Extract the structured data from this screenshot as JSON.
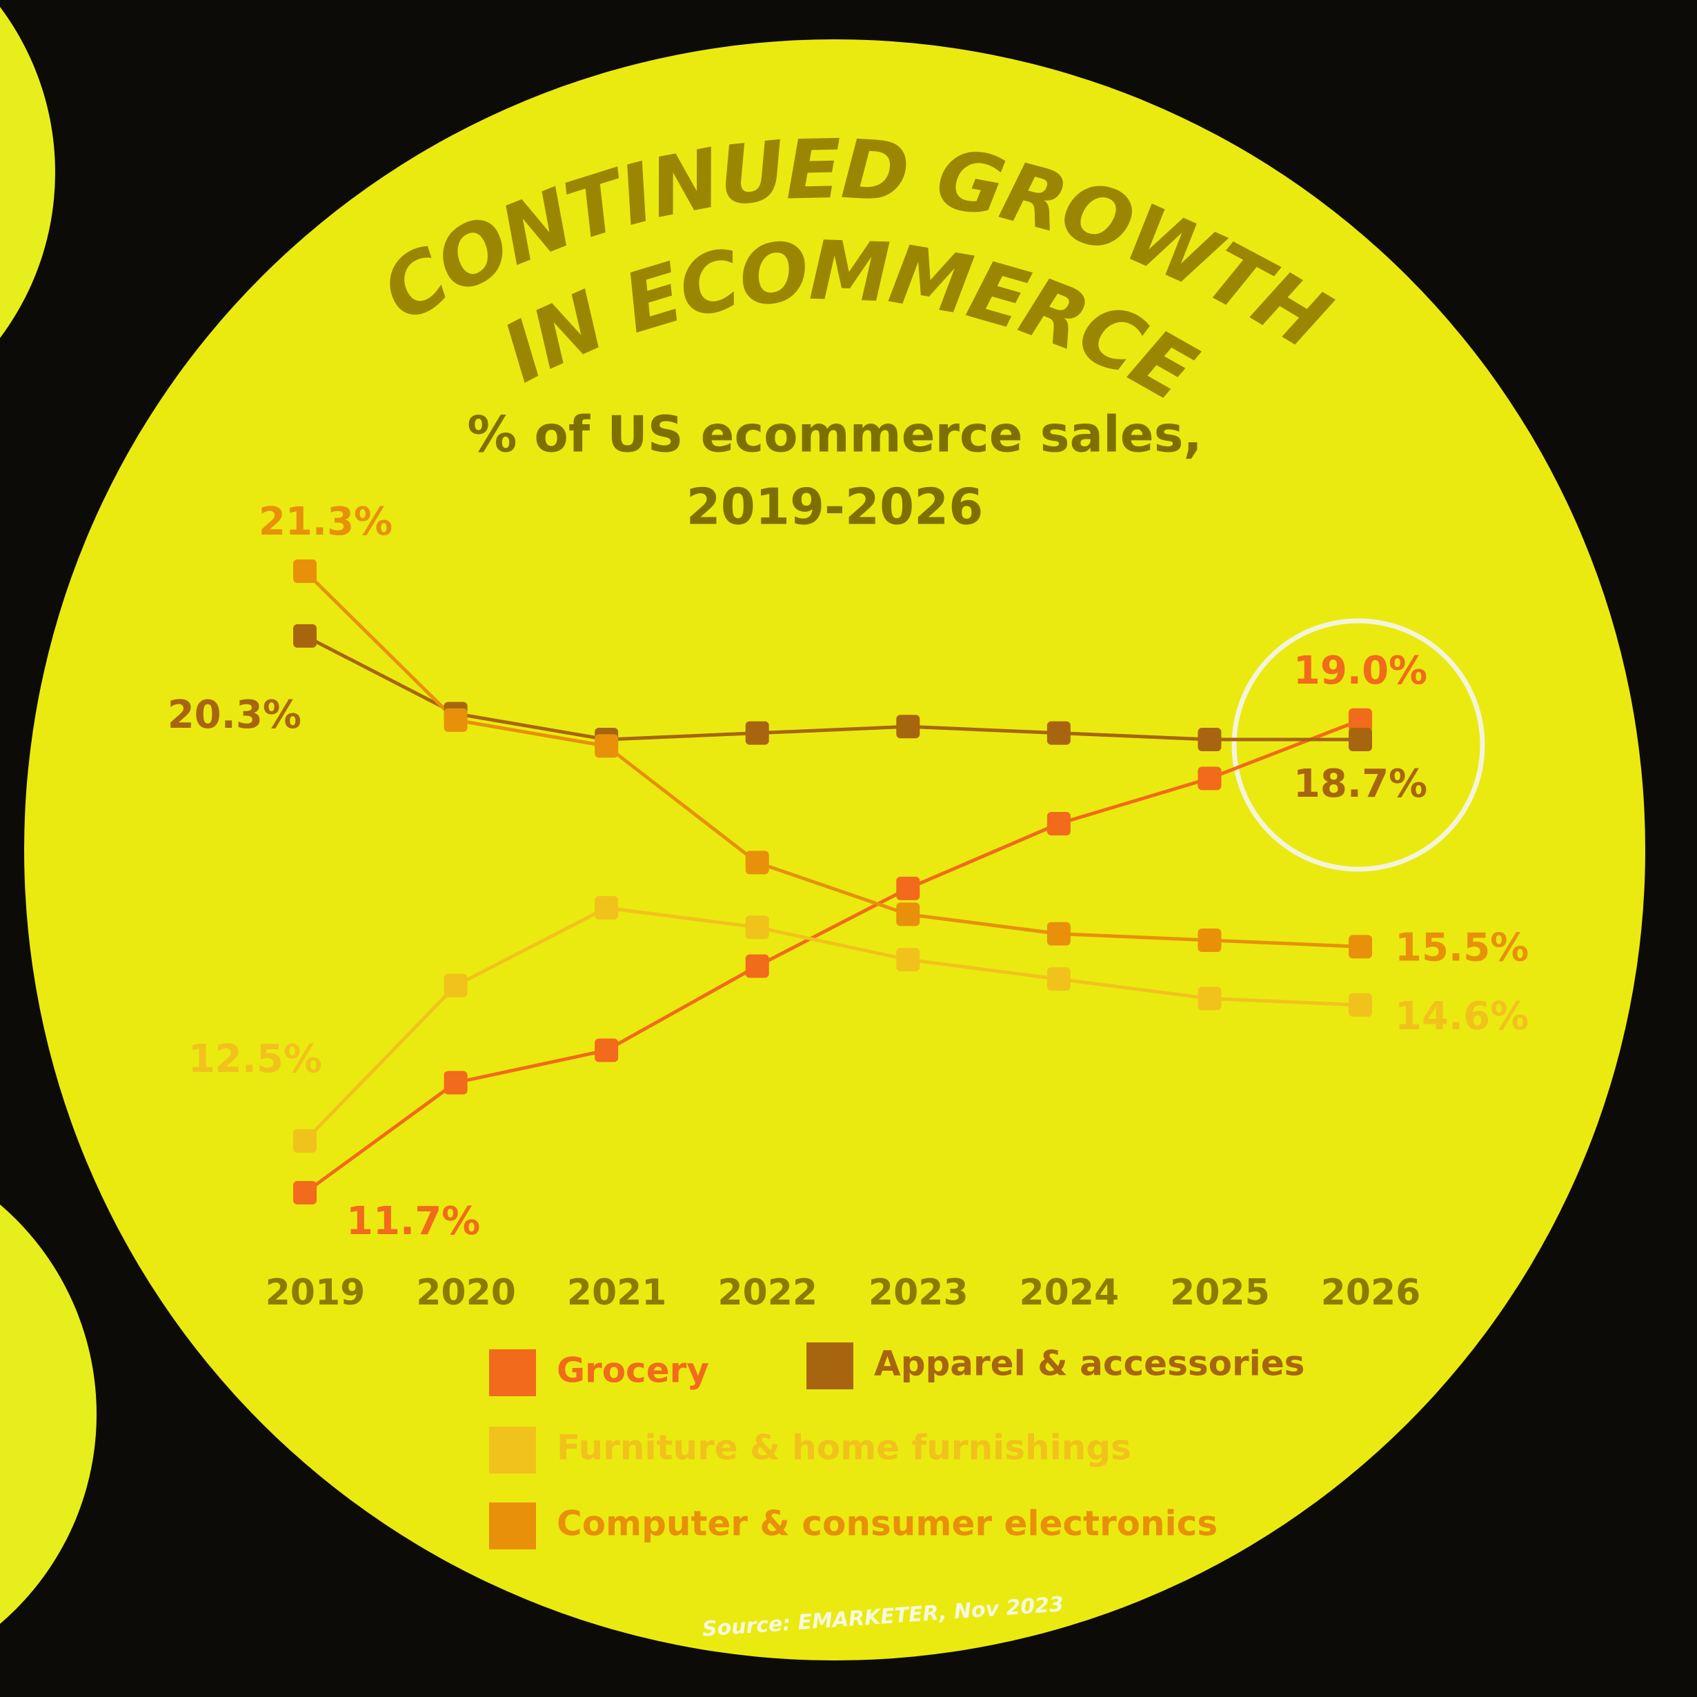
{
  "chart_data": {
    "type": "line",
    "title": [
      "CONTINUED GROWTH",
      "IN ECOMMERCE"
    ],
    "subtitle": [
      "% of US ecommerce sales,",
      "2019-2026"
    ],
    "categories": [
      "2019",
      "2020",
      "2021",
      "2022",
      "2023",
      "2024",
      "2025",
      "2026"
    ],
    "series": [
      {
        "name": "Grocery",
        "color": "#f26a1b",
        "values": [
          11.7,
          13.4,
          13.9,
          15.2,
          16.4,
          17.4,
          18.1,
          19.0
        ],
        "value_labels": [
          "11.7%",
          null,
          null,
          null,
          null,
          null,
          null,
          "19.0%"
        ]
      },
      {
        "name": "Apparel & accessories",
        "color": "#a8650f",
        "values": [
          20.3,
          19.1,
          18.7,
          18.8,
          18.9,
          18.8,
          18.7,
          18.7
        ],
        "value_labels": [
          "20.3%",
          null,
          null,
          null,
          null,
          null,
          null,
          "18.7%"
        ]
      },
      {
        "name": "Furniture & home furnishings",
        "color": "#f2c21c",
        "values": [
          12.5,
          14.9,
          16.1,
          15.8,
          15.3,
          15.0,
          14.7,
          14.6
        ],
        "value_labels": [
          "12.5%",
          null,
          null,
          null,
          null,
          null,
          null,
          "14.6%"
        ]
      },
      {
        "name": "Computer & consumer electronics",
        "color": "#e8900a",
        "values": [
          21.3,
          19.0,
          18.6,
          16.8,
          16.0,
          15.7,
          15.6,
          15.5
        ],
        "value_labels": [
          "21.3%",
          null,
          null,
          null,
          null,
          null,
          null,
          "15.5%"
        ]
      }
    ],
    "source": "Source: EMARKETER, Nov 2023"
  }
}
